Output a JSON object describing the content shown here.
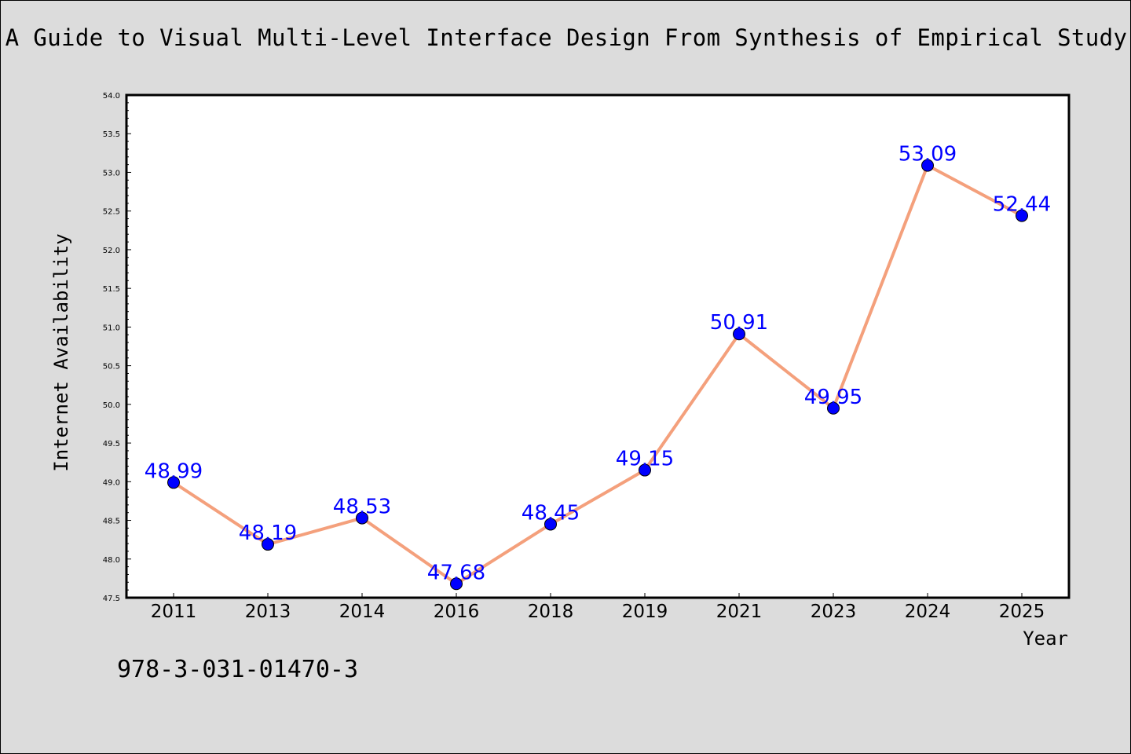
{
  "title": "A Guide to Visual Multi-Level Interface Design From Synthesis of Empirical Study",
  "isbn": "978-3-031-01470-3",
  "colors": {
    "background": "#dcdcdc",
    "plot_background": "#ffffff",
    "line": "#f4a07c",
    "marker": "#0000ff",
    "data_label": "#0000ff"
  },
  "chart_data": {
    "type": "line",
    "title": "A Guide to Visual Multi-Level Interface Design From Synthesis of Empirical Study",
    "xlabel": "Year",
    "ylabel": "Internet Availability",
    "categories": [
      "2011",
      "2013",
      "2014",
      "2016",
      "2018",
      "2019",
      "2021",
      "2023",
      "2024",
      "2025"
    ],
    "values": [
      48.99,
      48.19,
      48.53,
      47.68,
      48.45,
      49.15,
      50.91,
      49.95,
      53.09,
      52.44
    ],
    "data_labels": [
      "48.99",
      "48.19",
      "48.53",
      "47.68",
      "48.45",
      "49.15",
      "50.91",
      "49.95",
      "53.09",
      "52.44"
    ],
    "ylim": [
      47.5,
      54.0
    ],
    "yticks": [
      "47.5",
      "48.0",
      "48.5",
      "49.0",
      "49.5",
      "50.0",
      "50.5",
      "51.0",
      "51.5",
      "52.0",
      "52.5",
      "53.0",
      "53.5",
      "54.0"
    ],
    "grid": false,
    "legend": "none",
    "marker": "circle"
  }
}
